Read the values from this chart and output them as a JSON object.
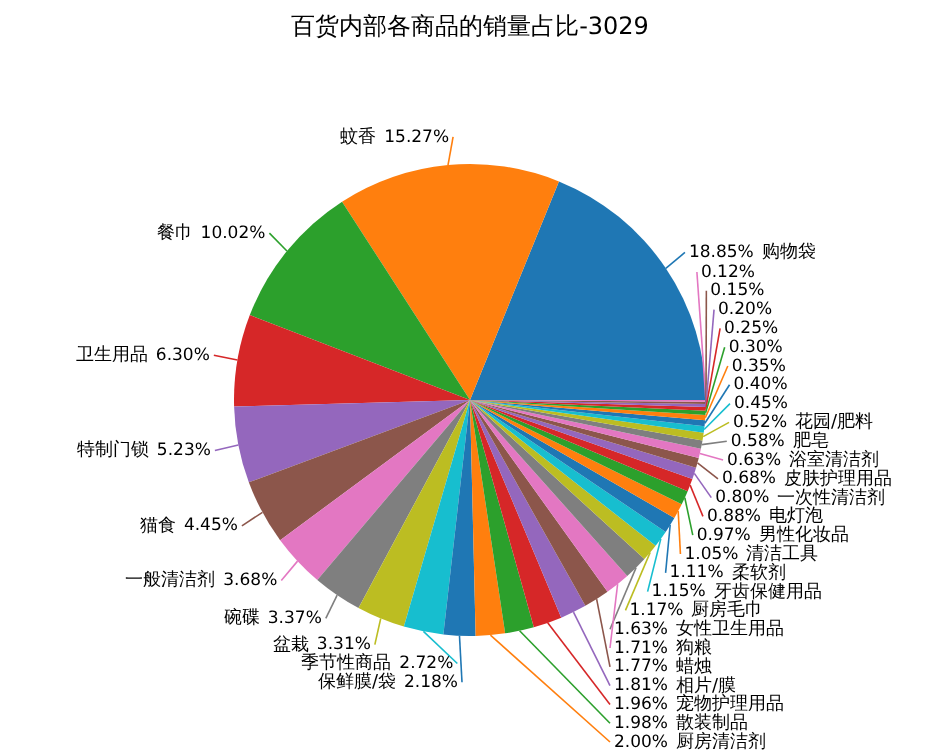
{
  "chart_data": {
    "type": "pie",
    "title": "百货内部各商品的销量占比-3029",
    "categories": [
      "购物袋",
      "蚊香",
      "餐巾",
      "卫生用品",
      "特制门锁",
      "猫食",
      "一般清洁剂",
      "碗碟",
      "盆栽",
      "季节性商品",
      "保鲜膜/袋",
      "厨房清洁剂",
      "散装制品",
      "宠物护理用品",
      "相片/膜",
      "蜡烛",
      "狗粮",
      "女性卫生用品",
      "厨房毛巾",
      "牙齿保健用品",
      "柔软剂",
      "清洁工具",
      "男性化妆品",
      "电灯泡",
      "一次性清洁剂",
      "皮肤护理用品",
      "浴室清洁剂",
      "肥皂",
      "花园/肥料",
      null,
      null,
      null,
      null,
      null,
      null,
      null,
      null
    ],
    "values": [
      18.85,
      15.27,
      10.02,
      6.3,
      5.23,
      4.45,
      3.68,
      3.37,
      3.31,
      2.72,
      2.18,
      2.0,
      1.98,
      1.96,
      1.81,
      1.77,
      1.71,
      1.63,
      1.17,
      1.15,
      1.11,
      1.05,
      0.97,
      0.88,
      0.8,
      0.68,
      0.63,
      0.58,
      0.52,
      0.45,
      0.4,
      0.35,
      0.3,
      0.25,
      0.2,
      0.15,
      0.12
    ],
    "value_labels": [
      "18.85%",
      "15.27%",
      "10.02%",
      "6.30%",
      "5.23%",
      "4.45%",
      "3.68%",
      "3.37%",
      "3.31%",
      "2.72%",
      "2.18%",
      "2.00%",
      "1.98%",
      "1.96%",
      "1.81%",
      "1.77%",
      "1.71%",
      "1.63%",
      "1.17%",
      "1.15%",
      "1.11%",
      "1.05%",
      "0.97%",
      "0.88%",
      "0.80%",
      "0.68%",
      "0.63%",
      "0.58%",
      "0.52%",
      "0.45%",
      "0.40%",
      "0.35%",
      "0.30%",
      "0.25%",
      "0.20%",
      "0.15%",
      "0.12%"
    ],
    "colors": [
      "#1f77b4",
      "#ff7f0e",
      "#2ca02c",
      "#d62728",
      "#9467bd",
      "#8c564b",
      "#e377c2",
      "#7f7f7f",
      "#bcbd22",
      "#17becf",
      "#1f77b4",
      "#ff7f0e",
      "#2ca02c",
      "#d62728",
      "#9467bd",
      "#8c564b",
      "#e377c2",
      "#7f7f7f",
      "#bcbd22",
      "#17becf",
      "#1f77b4",
      "#ff7f0e",
      "#2ca02c",
      "#d62728",
      "#9467bd",
      "#8c564b",
      "#e377c2",
      "#7f7f7f",
      "#bcbd22",
      "#17becf",
      "#1f77b4",
      "#ff7f0e",
      "#2ca02c",
      "#d62728",
      "#9467bd",
      "#8c564b",
      "#e377c2"
    ]
  }
}
